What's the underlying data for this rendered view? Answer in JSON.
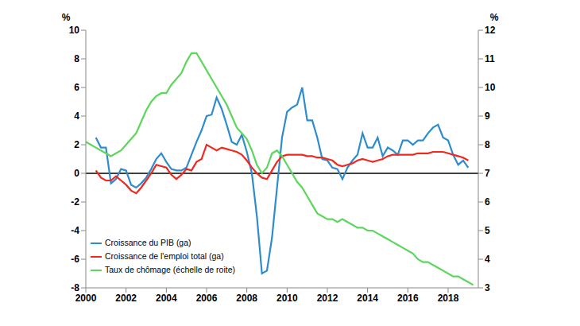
{
  "chart_data": {
    "type": "line",
    "x": [
      2000,
      2000.25,
      2000.5,
      2000.75,
      2001,
      2001.25,
      2001.5,
      2001.75,
      2002,
      2002.25,
      2002.5,
      2002.75,
      2003,
      2003.25,
      2003.5,
      2003.75,
      2004,
      2004.25,
      2004.5,
      2004.75,
      2005,
      2005.25,
      2005.5,
      2005.75,
      2006,
      2006.25,
      2006.5,
      2006.75,
      2007,
      2007.25,
      2007.5,
      2007.75,
      2008,
      2008.25,
      2008.5,
      2008.75,
      2009,
      2009.25,
      2009.5,
      2009.75,
      2010,
      2010.25,
      2010.5,
      2010.75,
      2011,
      2011.25,
      2011.5,
      2011.75,
      2012,
      2012.25,
      2012.5,
      2012.75,
      2013,
      2013.25,
      2013.5,
      2013.75,
      2014,
      2014.25,
      2014.5,
      2014.75,
      2015,
      2015.25,
      2015.5,
      2015.75,
      2016,
      2016.25,
      2016.5,
      2016.75,
      2017,
      2017.25,
      2017.5,
      2017.75,
      2018,
      2018.25,
      2018.5,
      2018.75,
      2019,
      2019.25
    ],
    "xlim": [
      2000,
      2019.5
    ],
    "xticks": [
      2000,
      2002,
      2004,
      2006,
      2008,
      2010,
      2012,
      2014,
      2016,
      2018
    ],
    "ylabel": "%",
    "ylim": [
      -8,
      10
    ],
    "yticks": [
      -8,
      -6,
      -4,
      -2,
      0,
      2,
      4,
      6,
      8,
      10
    ],
    "y2label": "%",
    "y2lim": [
      3,
      12
    ],
    "y2ticks": [
      3,
      4,
      5,
      6,
      7,
      8,
      9,
      10,
      11,
      12
    ],
    "hline": 0,
    "legend": "lower left",
    "series": [
      {
        "name": "Croissance du PIB (ga)",
        "color": "#2f8ccc",
        "values": [
          null,
          null,
          2.5,
          1.8,
          1.8,
          -0.7,
          -0.4,
          0.3,
          0.2,
          -0.8,
          -1.0,
          -0.7,
          -0.3,
          0.3,
          1.0,
          1.4,
          0.8,
          0.3,
          0.2,
          0.2,
          0.4,
          1.3,
          2.2,
          3.0,
          4.0,
          4.1,
          5.3,
          4.5,
          3.4,
          2.2,
          2.0,
          2.7,
          1.5,
          0.0,
          -3.0,
          -7.0,
          -6.8,
          -4.5,
          -1.0,
          2.5,
          4.3,
          4.6,
          4.8,
          6.0,
          3.7,
          3.7,
          2.5,
          1.0,
          0.9,
          0.4,
          0.3,
          -0.4,
          0.4,
          0.9,
          1.3,
          2.8,
          1.8,
          1.8,
          2.5,
          1.2,
          1.8,
          1.6,
          1.3,
          2.3,
          2.3,
          2.0,
          2.3,
          2.3,
          2.8,
          3.2,
          3.4,
          2.5,
          2.3,
          1.3,
          0.6,
          0.9,
          0.4,
          null
        ]
      },
      {
        "name": "Croissance de l'emploi total (ga)",
        "color": "#f0281e",
        "values": [
          null,
          null,
          0.2,
          -0.3,
          -0.5,
          -0.5,
          -0.2,
          -0.5,
          -0.8,
          -1.2,
          -1.4,
          -1.0,
          -0.5,
          0.0,
          0.6,
          0.5,
          0.4,
          -0.1,
          -0.4,
          -0.1,
          0.3,
          0.2,
          0.8,
          1.0,
          2.0,
          1.8,
          1.6,
          1.8,
          1.7,
          1.6,
          1.5,
          1.3,
          0.9,
          0.4,
          0.0,
          -0.3,
          -0.4,
          0.2,
          0.8,
          1.2,
          1.3,
          1.3,
          1.3,
          1.3,
          1.2,
          1.2,
          1.1,
          1.1,
          1.0,
          0.9,
          0.6,
          0.5,
          0.6,
          0.7,
          0.9,
          1.0,
          0.9,
          0.8,
          0.9,
          1.0,
          1.2,
          1.3,
          1.3,
          1.3,
          1.3,
          1.3,
          1.4,
          1.4,
          1.4,
          1.5,
          1.5,
          1.5,
          1.4,
          1.3,
          1.2,
          1.1,
          0.9,
          null
        ]
      },
      {
        "name": "Taux de chômage (échelle de roite)",
        "color": "#5cd65c",
        "axis": "y2",
        "values": [
          8.1,
          8.0,
          7.9,
          7.8,
          7.7,
          7.6,
          7.7,
          7.8,
          8.0,
          8.2,
          8.4,
          8.8,
          9.2,
          9.5,
          9.7,
          9.8,
          9.8,
          10.1,
          10.3,
          10.5,
          10.9,
          11.2,
          11.2,
          10.9,
          10.6,
          10.3,
          10.0,
          9.7,
          9.4,
          9.0,
          8.6,
          8.4,
          8.2,
          7.8,
          7.3,
          7.0,
          7.2,
          7.7,
          7.8,
          7.6,
          7.3,
          7.0,
          6.7,
          6.5,
          6.2,
          5.9,
          5.6,
          5.5,
          5.4,
          5.4,
          5.3,
          5.4,
          5.3,
          5.2,
          5.1,
          5.1,
          5.0,
          5.0,
          4.9,
          4.8,
          4.7,
          4.6,
          4.5,
          4.4,
          4.3,
          4.2,
          4.0,
          3.9,
          3.9,
          3.8,
          3.7,
          3.6,
          3.5,
          3.4,
          3.4,
          3.3,
          3.2,
          3.1
        ]
      }
    ]
  }
}
